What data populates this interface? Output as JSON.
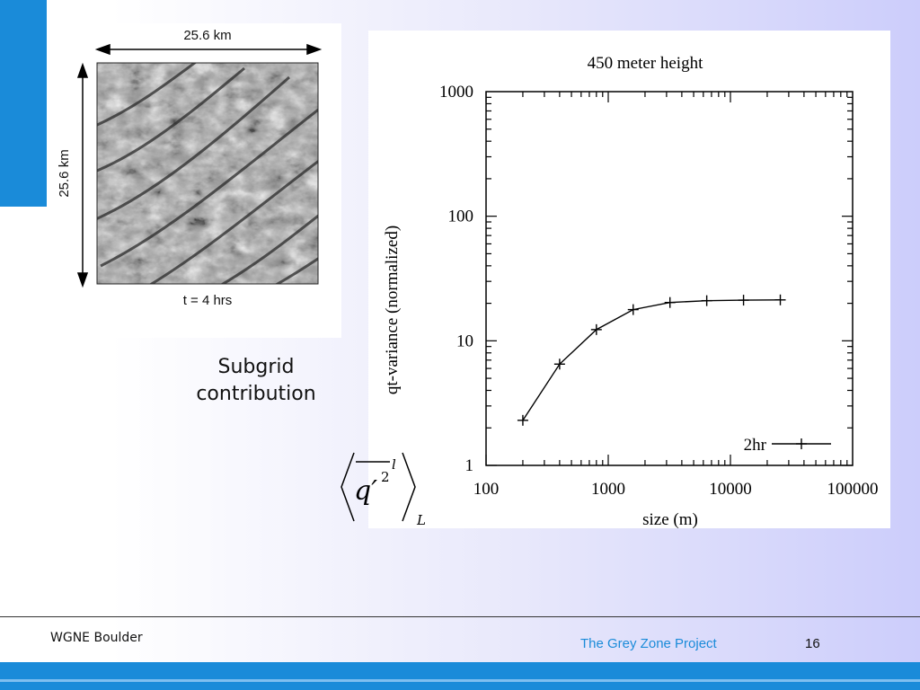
{
  "image_panel": {
    "width_label": "25.6 km",
    "height_label": "25.6 km",
    "time_label": "t = 4 hrs"
  },
  "caption": {
    "line1": "Subgrid",
    "line2": "contribution"
  },
  "formula": {
    "base": "q′",
    "power": "2",
    "sup": "l",
    "sub": "L"
  },
  "chart_data": {
    "type": "line",
    "title": "450 meter height",
    "xlabel": "size (m)",
    "ylabel": "qt-variance (normalized)",
    "x_scale": "log",
    "y_scale": "log",
    "xlim": [
      100,
      100000
    ],
    "ylim": [
      1,
      1000
    ],
    "x_ticks": [
      "100",
      "1000",
      "10000",
      "100000"
    ],
    "y_ticks": [
      "1",
      "10",
      "100",
      "1000"
    ],
    "grid": false,
    "legend": "bottom-right",
    "series": [
      {
        "name": "2hr",
        "color": "#000000",
        "marker": "plus",
        "x": [
          200,
          400,
          800,
          1600,
          3200,
          6400,
          12800,
          25600
        ],
        "y": [
          2.3,
          6.5,
          12.3,
          17.8,
          20.3,
          21.0,
          21.2,
          21.3
        ]
      }
    ]
  },
  "footer": {
    "left": "WGNE Boulder",
    "center": "The Grey Zone Project",
    "page": "16"
  }
}
